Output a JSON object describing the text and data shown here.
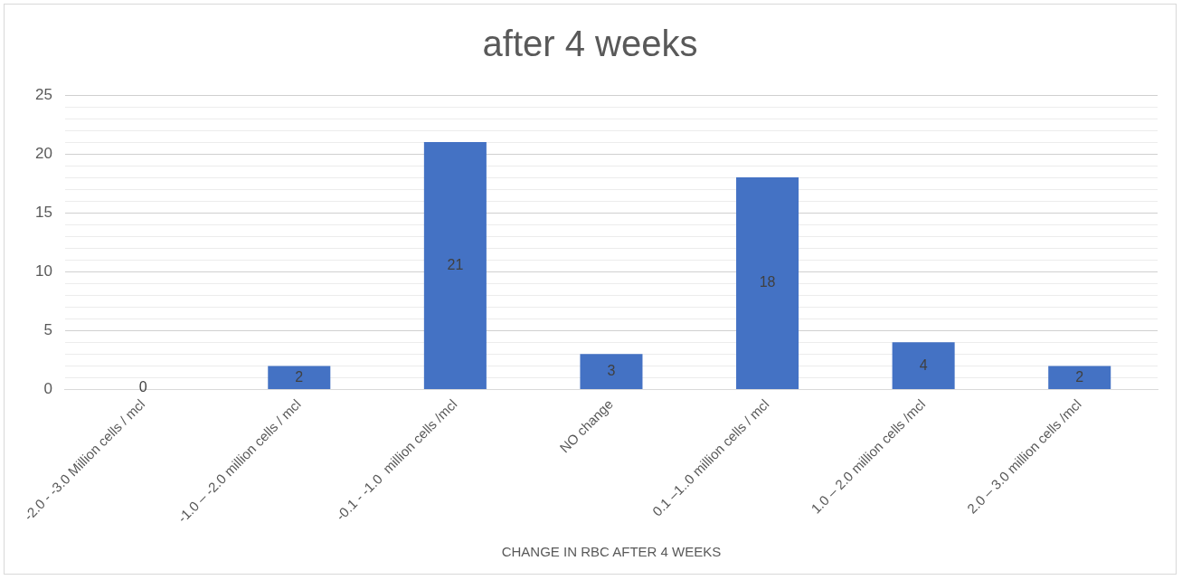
{
  "chart_data": {
    "type": "bar",
    "title": "after 4 weeks",
    "xlabel": "CHANGE IN RBC AFTER 4 WEEKS",
    "categories": [
      "-2.0 - -3.0 Million cells / mcl",
      "-1.0 – -2.0 million cells / mcl",
      "-0.1 - -1.0  million cells /mcl",
      "NO change",
      "0.1 –1..0 million cells / mcl",
      "1.0 – 2.0 million cells /mcl",
      "2.0 – 3.0 million cells /mcl"
    ],
    "values": [
      0,
      2,
      21,
      3,
      18,
      4,
      2
    ],
    "color": "#4472c4",
    "data_labels": true,
    "ylim": [
      0,
      25
    ],
    "yticks": [
      0,
      {
        "value": 1,
        "label": null
      },
      {
        "value": 2,
        "label": null
      },
      {
        "value": 3,
        "label": null
      },
      {
        "value": 4,
        "label": null
      },
      5,
      {
        "value": 6,
        "label": null
      },
      {
        "value": 7,
        "label": null
      },
      {
        "value": 8,
        "label": null
      },
      {
        "value": 9,
        "label": null
      },
      10,
      {
        "value": 11,
        "label": null
      },
      {
        "value": 12,
        "label": null
      },
      {
        "value": 13,
        "label": null
      },
      {
        "value": 14,
        "label": null
      },
      15,
      {
        "value": 16,
        "label": null
      },
      {
        "value": 17,
        "label": null
      },
      {
        "value": 18,
        "label": null
      },
      {
        "value": 19,
        "label": null
      },
      20,
      {
        "value": 21,
        "label": null
      },
      {
        "value": 22,
        "label": null
      },
      {
        "value": 23,
        "label": null
      },
      {
        "value": 24,
        "label": null
      },
      25
    ],
    "grid": "y",
    "legend": false
  }
}
